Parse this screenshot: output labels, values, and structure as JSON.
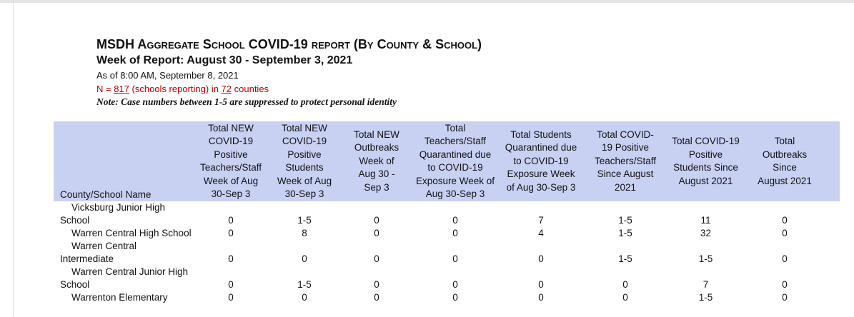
{
  "header": {
    "title": "MSDH Aggregate School COVID-19 report (By County & School)",
    "week": "Week of Report: August 30 - September 3, 2021",
    "as_of": "As of 8:00 AM, September 8, 2021",
    "n_prefix": "N = ",
    "n_schools": 817,
    "n_middle": " (schools reporting) in ",
    "n_counties": 72,
    "n_suffix": " counties",
    "note": "Note: Case numbers between 1-5 are suppressed to protect personal identity"
  },
  "table": {
    "columns": [
      [
        "County/School Name"
      ],
      [
        "Total NEW",
        "COVID-19",
        "Positive",
        "Teachers/Staff",
        "Week of Aug",
        "30-Sep 3"
      ],
      [
        "Total NEW",
        "COVID-19",
        "Positive",
        "Students",
        "Week of Aug",
        "30-Sep 3"
      ],
      [
        "Total NEW",
        "Outbreaks",
        "Week of",
        "Aug 30 -",
        "Sep 3"
      ],
      [
        "Total",
        "Teachers/Staff",
        "Quarantined due",
        "to COVID-19",
        "Exposure Week of",
        "Aug 30-Sep 3"
      ],
      [
        "Total Students",
        "Quarantined due",
        "to COVID-19",
        "Exposure Week",
        "of Aug 30-Sep 3"
      ],
      [
        "Total COVID-",
        "19 Positive",
        "Teachers/Staff",
        "Since August",
        "2021"
      ],
      [
        "Total COVID-19",
        "Positive",
        "Students Since",
        "August 2021"
      ],
      [
        "Total",
        "Outbreaks",
        "Since",
        "August 2021"
      ]
    ],
    "rows": [
      {
        "name": [
          "Vicksburg Junior High",
          "School"
        ],
        "cells": [
          0,
          "1-5",
          0,
          0,
          7,
          "1-5",
          11,
          0
        ]
      },
      {
        "name": [
          "Warren Central High School"
        ],
        "cells": [
          0,
          8,
          0,
          0,
          4,
          "1-5",
          32,
          0
        ]
      },
      {
        "name": [
          "Warren Central",
          "Intermediate"
        ],
        "cells": [
          0,
          0,
          0,
          0,
          0,
          "1-5",
          "1-5",
          0
        ]
      },
      {
        "name": [
          "Warren Central Junior High",
          "School"
        ],
        "cells": [
          0,
          "1-5",
          0,
          0,
          0,
          0,
          7,
          0
        ]
      },
      {
        "name": [
          "Warrenton Elementary"
        ],
        "cells": [
          0,
          0,
          0,
          0,
          0,
          0,
          "1-5",
          0
        ]
      }
    ]
  }
}
